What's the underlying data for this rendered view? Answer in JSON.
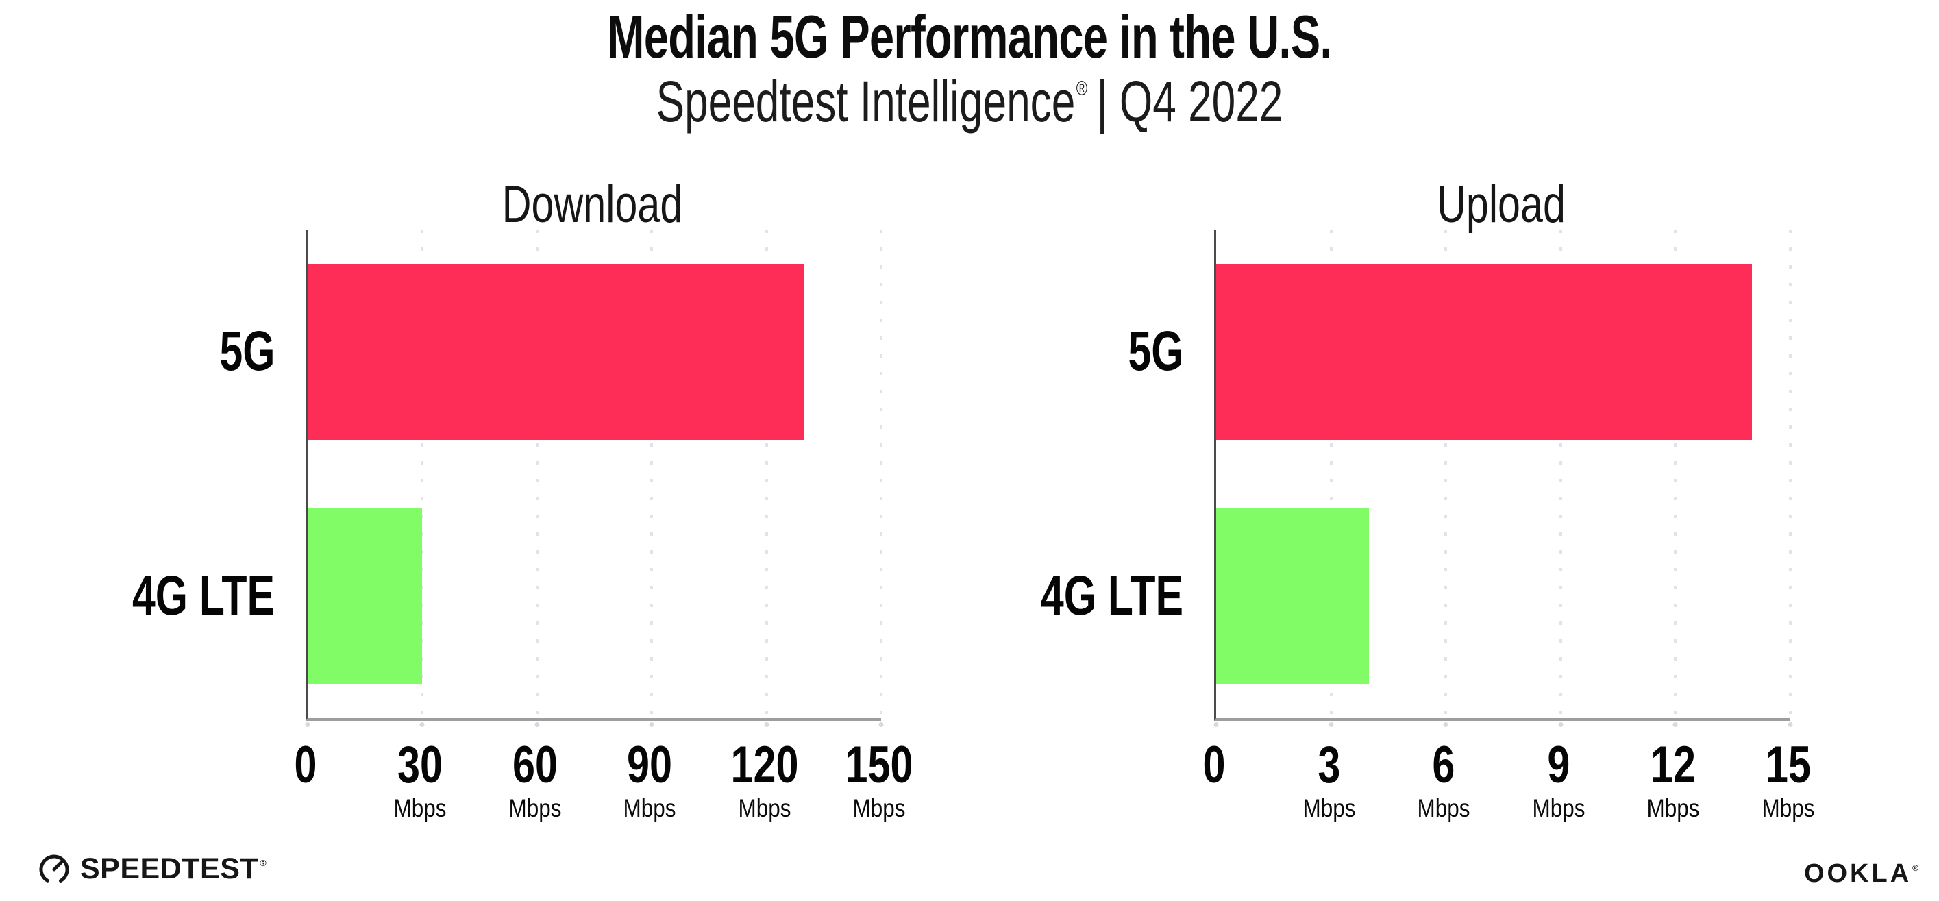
{
  "header": {
    "title": "Median 5G Performance in the U.S.",
    "subtitle_brand": "Speedtest Intelligence",
    "subtitle_reg": "®",
    "subtitle_period": "| Q4 2022"
  },
  "footer": {
    "speedtest_label": "SPEEDTEST",
    "speedtest_mark": "®",
    "ookla_label": "OOKLA",
    "ookla_mark": "®"
  },
  "colors": {
    "bar_5g": "#fd2d57",
    "bar_4g_lte": "#82fc66",
    "gridline": "#e2e2ec",
    "axis_left": "#4b4b4b",
    "axis_bottom": "#9e9e9e",
    "text": "#111111",
    "background": "#ffffff"
  },
  "chart_data": [
    {
      "type": "bar",
      "orientation": "horizontal",
      "title": "Download",
      "categories": [
        "5G",
        "4G LTE"
      ],
      "values": [
        130,
        30
      ],
      "unit": "Mbps",
      "xlim": [
        0,
        150
      ],
      "ticks": [
        0,
        30,
        60,
        90,
        120,
        150
      ],
      "grid": "dotted-vertical",
      "legend": "none",
      "bar_colors": [
        "#fd2d57",
        "#82fc66"
      ]
    },
    {
      "type": "bar",
      "orientation": "horizontal",
      "title": "Upload",
      "categories": [
        "5G",
        "4G LTE"
      ],
      "values": [
        14,
        4
      ],
      "unit": "Mbps",
      "xlim": [
        0,
        15
      ],
      "ticks": [
        0,
        3,
        6,
        9,
        12,
        15
      ],
      "grid": "dotted-vertical",
      "legend": "none",
      "bar_colors": [
        "#fd2d57",
        "#82fc66"
      ]
    }
  ]
}
